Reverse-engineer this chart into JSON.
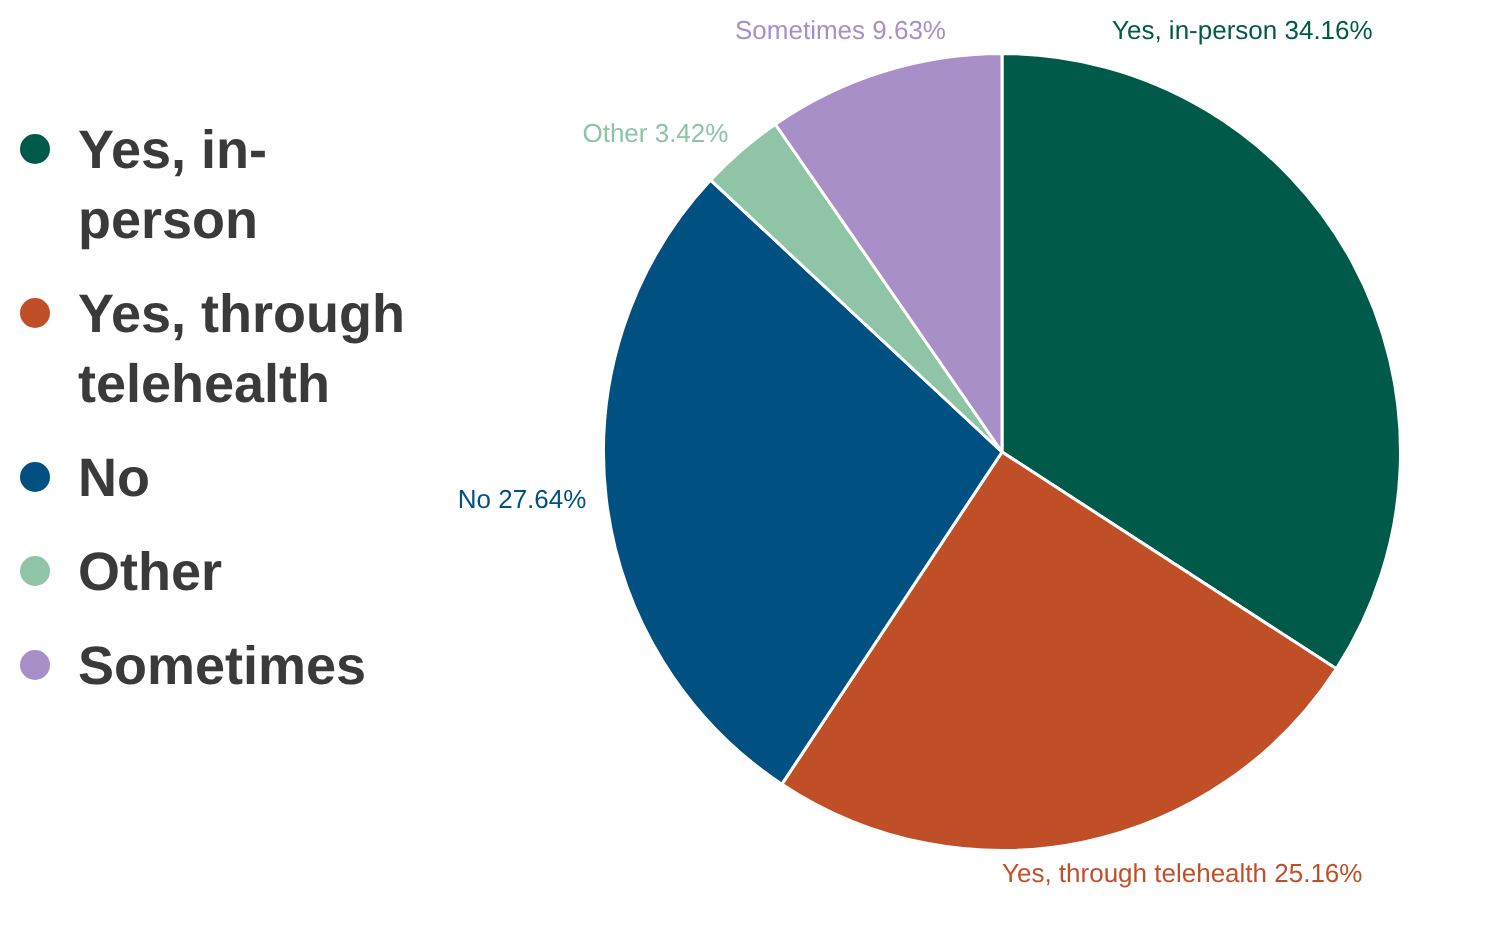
{
  "chart_data": {
    "type": "pie",
    "categories": [
      "Yes, in-person",
      "Yes, through telehealth",
      "No",
      "Other",
      "Sometimes"
    ],
    "values": [
      34.16,
      25.16,
      27.64,
      3.42,
      9.63
    ],
    "colors": [
      "#005a4a",
      "#c04f28",
      "#005082",
      "#8fc4a6",
      "#a98fc8"
    ],
    "value_labels": [
      "34.16%",
      "25.16%",
      "27.64%",
      "3.42%",
      "9.63%"
    ],
    "legend": "left"
  }
}
